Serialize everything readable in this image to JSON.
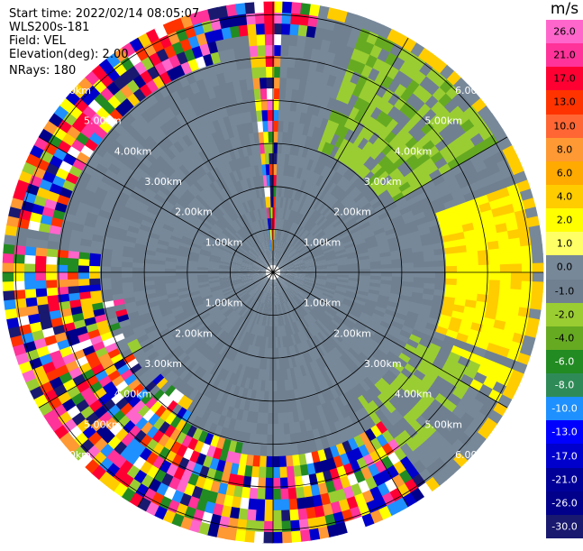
{
  "info": {
    "start_time": "Start time: 2022/02/14 08:05:07",
    "instrument": "WLS200s-181",
    "field": "Field: VEL",
    "elevation": "Elevation(deg): 2.00",
    "nrays": "NRays: 180"
  },
  "colorbar": {
    "unit": "m/s",
    "ticks": [
      "26.0",
      "21.0",
      "17.0",
      "13.0",
      "10.0",
      "8.0",
      "6.0",
      "4.0",
      "2.0",
      "1.0",
      "0.0",
      "-1.0",
      "-2.0",
      "-4.0",
      "-6.0",
      "-8.0",
      "-10.0",
      "-13.0",
      "-17.0",
      "-21.0",
      "-26.0",
      "-30.0"
    ],
    "colors": [
      "#ff66cc",
      "#ff3399",
      "#ff0033",
      "#ff3300",
      "#ff6633",
      "#ff9933",
      "#ffaa00",
      "#ffcc00",
      "#ffff00",
      "#ffff66",
      "#778899",
      "#708090",
      "#9acd32",
      "#66aa22",
      "#228b22",
      "#2e8b57",
      "#1e90ff",
      "#0000ff",
      "#0000cc",
      "#000099",
      "#00008b",
      "#191970"
    ]
  },
  "chart_data": {
    "type": "heatmap",
    "projection": "polar PPI",
    "field": "VEL",
    "units": "m/s",
    "value_range": [
      -30.0,
      30.0
    ],
    "range_rings_km": [
      1.0,
      2.0,
      3.0,
      4.0,
      5.0,
      6.0
    ],
    "ring_labels": [
      "1.00km",
      "2.00km",
      "3.00km",
      "4.00km",
      "5.00km",
      "6.00km"
    ],
    "spoke_angles_deg": [
      0,
      30,
      60,
      90,
      120,
      150,
      180,
      210,
      240,
      270,
      300,
      330
    ],
    "max_range_km": 6.3,
    "nrays": 180
  }
}
